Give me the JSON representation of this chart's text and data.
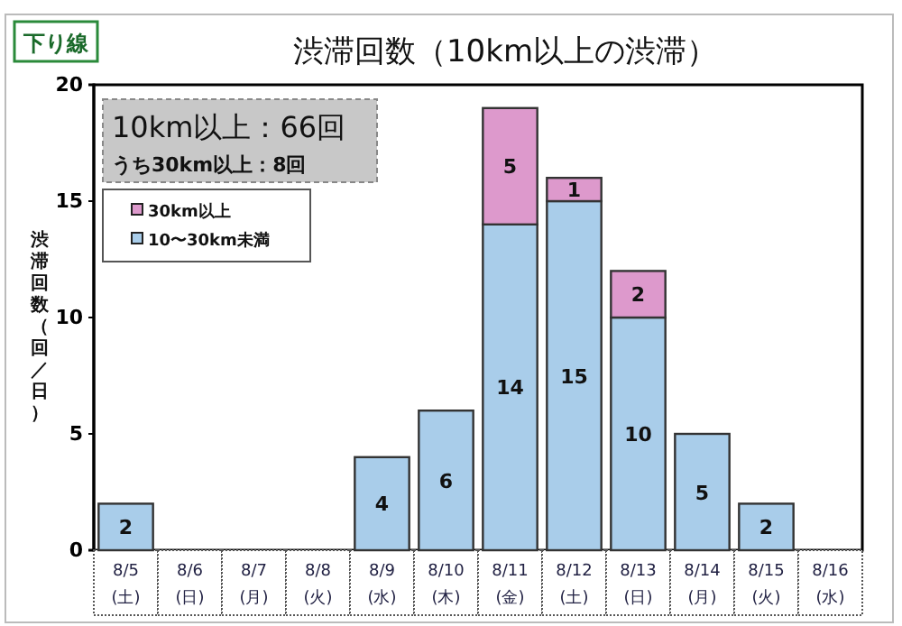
{
  "chart_data": {
    "type": "bar",
    "title": "渋滞回数（10km以上の渋滞）",
    "ylabel": "渋滞回数（回／日）",
    "annotations": [
      "下り線",
      "10km以上：66回",
      "うち30km以上：8回"
    ],
    "categories": [
      "8/5(土)",
      "8/6(日)",
      "8/7(月)",
      "8/8(火)",
      "8/9(水)",
      "8/10(木)",
      "8/11(金)",
      "8/12(土)",
      "8/13(日)",
      "8/14(月)",
      "8/15(火)",
      "8/16(水)"
    ],
    "stacked": true,
    "series": [
      {
        "name": "10〜30km未満",
        "color": "#a9cdea",
        "values": [
          2,
          null,
          null,
          null,
          4,
          6,
          14,
          15,
          10,
          5,
          2,
          null
        ],
        "value_labels": [
          "2",
          null,
          null,
          null,
          "4",
          "6",
          "14",
          "15",
          "10",
          "5",
          "2",
          null
        ]
      },
      {
        "name": "30km以上",
        "color": "#dd99cc",
        "values": [
          0,
          null,
          null,
          null,
          0,
          0,
          5,
          1,
          2,
          0,
          0,
          null
        ],
        "value_labels": [
          null,
          null,
          null,
          null,
          null,
          null,
          "5",
          "1",
          "2",
          null,
          null,
          null
        ]
      }
    ],
    "ylim": [
      0,
      20
    ],
    "yticks": [
      0,
      5,
      10,
      15,
      20
    ],
    "grid": false,
    "legend": "top left"
  }
}
